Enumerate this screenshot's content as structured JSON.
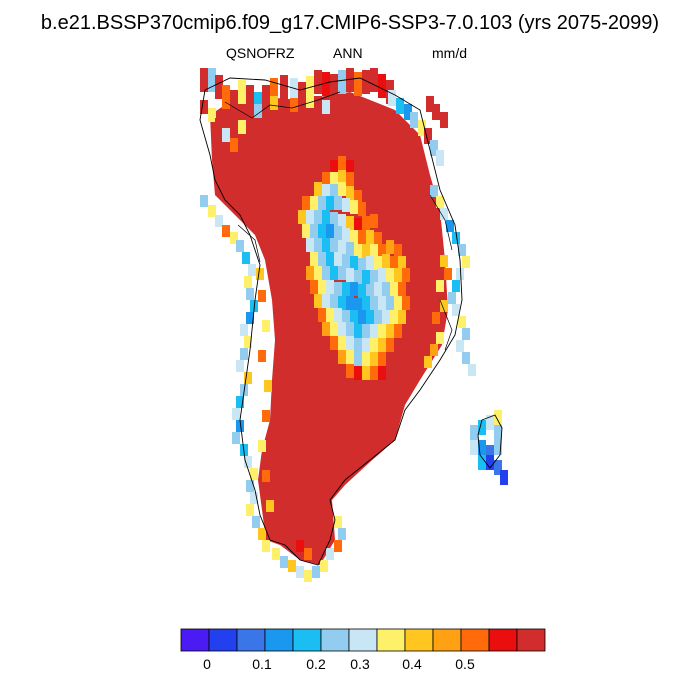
{
  "title": "b.e21.BSSP370cmip6.f09_g17.CMIP6-SSP3-7.0.103 (yrs 2075-2099)",
  "subtitle": {
    "variable": "QSNOFRZ",
    "period": "ANN",
    "units": "mm/d"
  },
  "colorbar": {
    "colors": [
      "#4a1bf2",
      "#2240ee",
      "#3a76e8",
      "#1a97ef",
      "#1bbef3",
      "#92cdef",
      "#c8e6f4",
      "#fff06a",
      "#ffc61f",
      "#ffa112",
      "#ff6a0a",
      "#ea0e0e",
      "#d22d2d"
    ],
    "labels": [
      "0",
      "0.1",
      "0.2",
      "0.3",
      "0.4",
      "0.5"
    ]
  }
}
